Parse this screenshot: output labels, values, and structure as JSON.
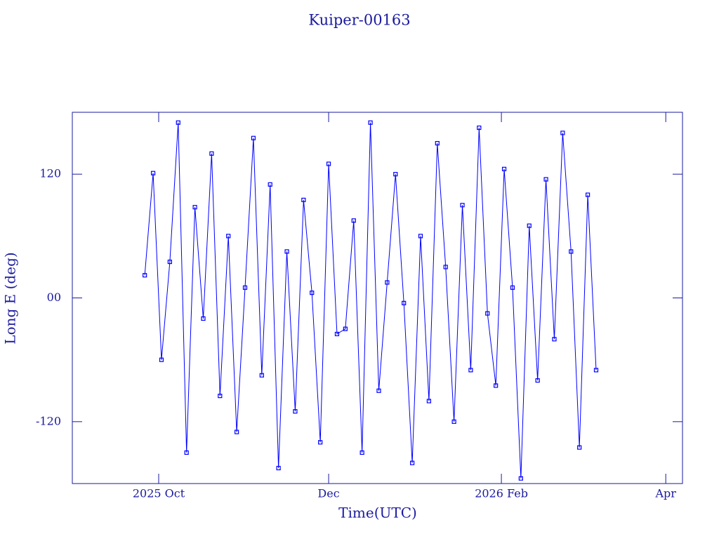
{
  "chart_data": {
    "type": "line",
    "title": "Kuiper-00163",
    "xlabel": "Time(UTC)",
    "ylabel": "Long E (deg)",
    "color": "#0000ff",
    "x": [
      "2025-09-26",
      "2025-09-29",
      "2025-10-02",
      "2025-10-05",
      "2025-10-08",
      "2025-10-11",
      "2025-10-14",
      "2025-10-17",
      "2025-10-20",
      "2025-10-23",
      "2025-10-26",
      "2025-10-29",
      "2025-11-01",
      "2025-11-04",
      "2025-11-07",
      "2025-11-10",
      "2025-11-13",
      "2025-11-16",
      "2025-11-19",
      "2025-11-22",
      "2025-11-25",
      "2025-11-28",
      "2025-12-01",
      "2025-12-04",
      "2025-12-07",
      "2025-12-10",
      "2025-12-13",
      "2025-12-16",
      "2025-12-19",
      "2025-12-22",
      "2025-12-25",
      "2025-12-28",
      "2025-12-31",
      "2026-01-03",
      "2026-01-06",
      "2026-01-09",
      "2026-01-12",
      "2026-01-15",
      "2026-01-18",
      "2026-01-21",
      "2026-01-24",
      "2026-01-27",
      "2026-01-30",
      "2026-02-02",
      "2026-02-05",
      "2026-02-08",
      "2026-02-11",
      "2026-02-14",
      "2026-02-17",
      "2026-02-20",
      "2026-02-23",
      "2026-02-26",
      "2026-03-01",
      "2026-03-04",
      "2026-03-07"
    ],
    "values": [
      22,
      121,
      -60,
      35,
      170,
      -150,
      88,
      -20,
      140,
      -95,
      60,
      -130,
      10,
      155,
      -75,
      110,
      -165,
      45,
      -110,
      95,
      5,
      -140,
      130,
      -35,
      -30,
      75,
      -150,
      170,
      -90,
      15,
      120,
      -5,
      -160,
      60,
      -100,
      150,
      30,
      -120,
      90,
      -70,
      165,
      -15,
      -85,
      125,
      10,
      -175,
      70,
      -80,
      115,
      -40,
      160,
      45,
      -145,
      100,
      -70
    ],
    "xlim": [
      "2025-08-31",
      "2026-04-07"
    ],
    "xticks": [
      {
        "value": "2025-10-01",
        "label": "2025 Oct"
      },
      {
        "value": "2025-12-01",
        "label": "Dec"
      },
      {
        "value": "2026-02-01",
        "label": "2026 Feb"
      },
      {
        "value": "2026-04-01",
        "label": "Apr"
      }
    ],
    "ylim": [
      -180,
      180
    ],
    "yticks": [
      -120,
      {
        "value": 0,
        "label": "00"
      },
      120
    ]
  }
}
